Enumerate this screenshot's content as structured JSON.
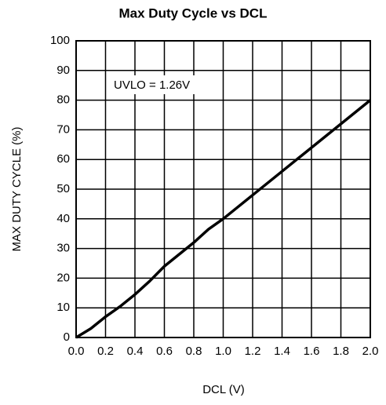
{
  "chart_data": {
    "type": "line",
    "title": "Max Duty Cycle vs DCL",
    "x_label": "DCL (V)",
    "y_label": "MAX DUTY CYCLE (%)",
    "annotation": "UVLO = 1.26V",
    "x": [
      0,
      0.1,
      0.2,
      0.3,
      0.4,
      0.5,
      0.6,
      0.7,
      0.8,
      0.9,
      1.0,
      1.1,
      1.2,
      1.4,
      1.6,
      1.8,
      2.0
    ],
    "series": [
      {
        "name": "Max Duty Cycle",
        "color": "#000000",
        "values": [
          0,
          3,
          7,
          10.5,
          14.5,
          19,
          24,
          28,
          32,
          36.5,
          40,
          44,
          48,
          56,
          64,
          72,
          80
        ]
      }
    ],
    "xlim": [
      0,
      2
    ],
    "xticks": [
      {
        "value": 0,
        "label": "0.0"
      },
      0.2,
      0.4,
      0.6,
      0.8,
      {
        "value": 1,
        "label": "1.0"
      },
      1.2,
      1.4,
      1.6,
      1.8,
      {
        "value": 2,
        "label": "2.0"
      }
    ],
    "ylim": [
      0,
      100
    ],
    "yticks": [
      0,
      10,
      20,
      30,
      40,
      50,
      60,
      70,
      80,
      90,
      100
    ],
    "grid": true
  }
}
